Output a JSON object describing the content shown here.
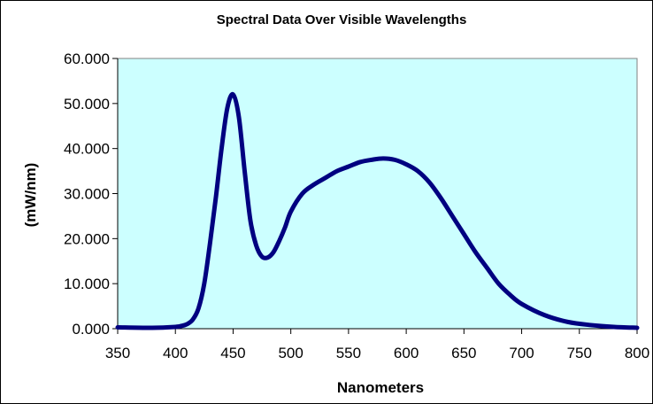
{
  "chart_data": {
    "type": "line",
    "title": "Spectral Data Over Visible Wavelengths",
    "xlabel": "Nanometers",
    "ylabel": "(mW/nm)",
    "xlim": [
      350,
      800
    ],
    "ylim": [
      0,
      60
    ],
    "x_ticks": [
      "350",
      "400",
      "450",
      "500",
      "550",
      "600",
      "650",
      "700",
      "750",
      "800"
    ],
    "y_ticks": [
      "0.000",
      "10.000",
      "20.000",
      "30.000",
      "40.000",
      "50.000",
      "60.000"
    ],
    "grid": false,
    "legend": "none",
    "plot_background": "#ccffff",
    "series": [
      {
        "color": "#000080",
        "x": [
          350,
          380,
          400,
          405,
          410,
          415,
          420,
          425,
          430,
          435,
          440,
          445,
          450,
          455,
          460,
          465,
          470,
          475,
          480,
          485,
          490,
          495,
          500,
          510,
          520,
          530,
          540,
          550,
          560,
          570,
          580,
          590,
          600,
          610,
          620,
          630,
          640,
          650,
          660,
          670,
          680,
          690,
          700,
          720,
          740,
          760,
          780,
          800
        ],
        "y": [
          0.3,
          0.2,
          0.4,
          0.6,
          1.0,
          2.0,
          4.5,
          10.0,
          19.0,
          29.0,
          40.0,
          49.0,
          52.0,
          47.0,
          35.0,
          24.0,
          18.5,
          16.0,
          15.8,
          17.0,
          19.5,
          22.5,
          26.0,
          30.0,
          32.0,
          33.5,
          35.0,
          36.0,
          37.0,
          37.5,
          37.8,
          37.5,
          36.5,
          35.0,
          32.5,
          29.0,
          25.0,
          21.0,
          17.0,
          13.5,
          10.0,
          7.5,
          5.5,
          3.0,
          1.5,
          0.8,
          0.4,
          0.2
        ]
      }
    ]
  }
}
